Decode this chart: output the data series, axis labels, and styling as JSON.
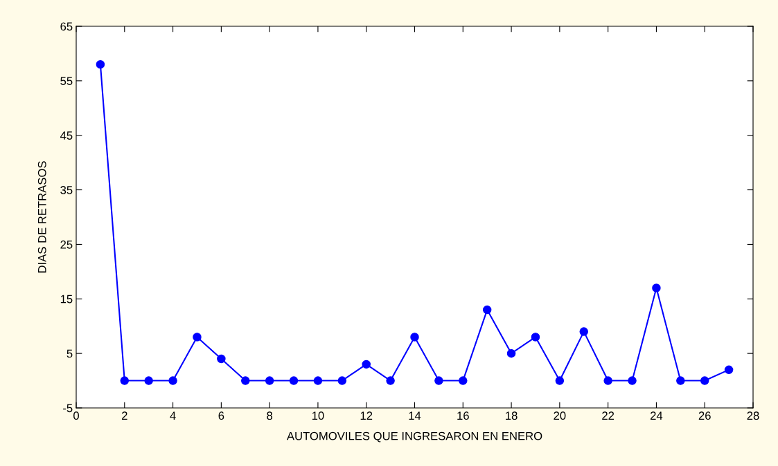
{
  "chart_data": {
    "type": "line",
    "xlabel": "AUTOMOVILES QUE INGRESARON EN ENERO",
    "ylabel": "DIAS DE RETRASOS",
    "x": [
      1,
      2,
      3,
      4,
      5,
      6,
      7,
      8,
      9,
      10,
      11,
      12,
      13,
      14,
      15,
      16,
      17,
      18,
      19,
      20,
      21,
      22,
      23,
      24,
      25,
      26,
      27
    ],
    "series": [
      {
        "color": "#0000ff",
        "values": [
          58,
          0,
          0,
          0,
          8,
          4,
          0,
          0,
          0,
          0,
          0,
          3,
          0,
          8,
          0,
          0,
          13,
          5,
          8,
          0,
          9,
          0,
          0,
          17,
          0,
          0,
          2
        ]
      }
    ],
    "xlim": [
      0,
      28
    ],
    "xticks": [
      0,
      2,
      4,
      6,
      8,
      10,
      12,
      14,
      16,
      18,
      20,
      22,
      24,
      26,
      28
    ],
    "ylim": [
      -5,
      65
    ],
    "yticks": [
      -5,
      5,
      15,
      25,
      35,
      45,
      55,
      65
    ],
    "marker": "circle",
    "line_style": "solid",
    "grid": false
  }
}
